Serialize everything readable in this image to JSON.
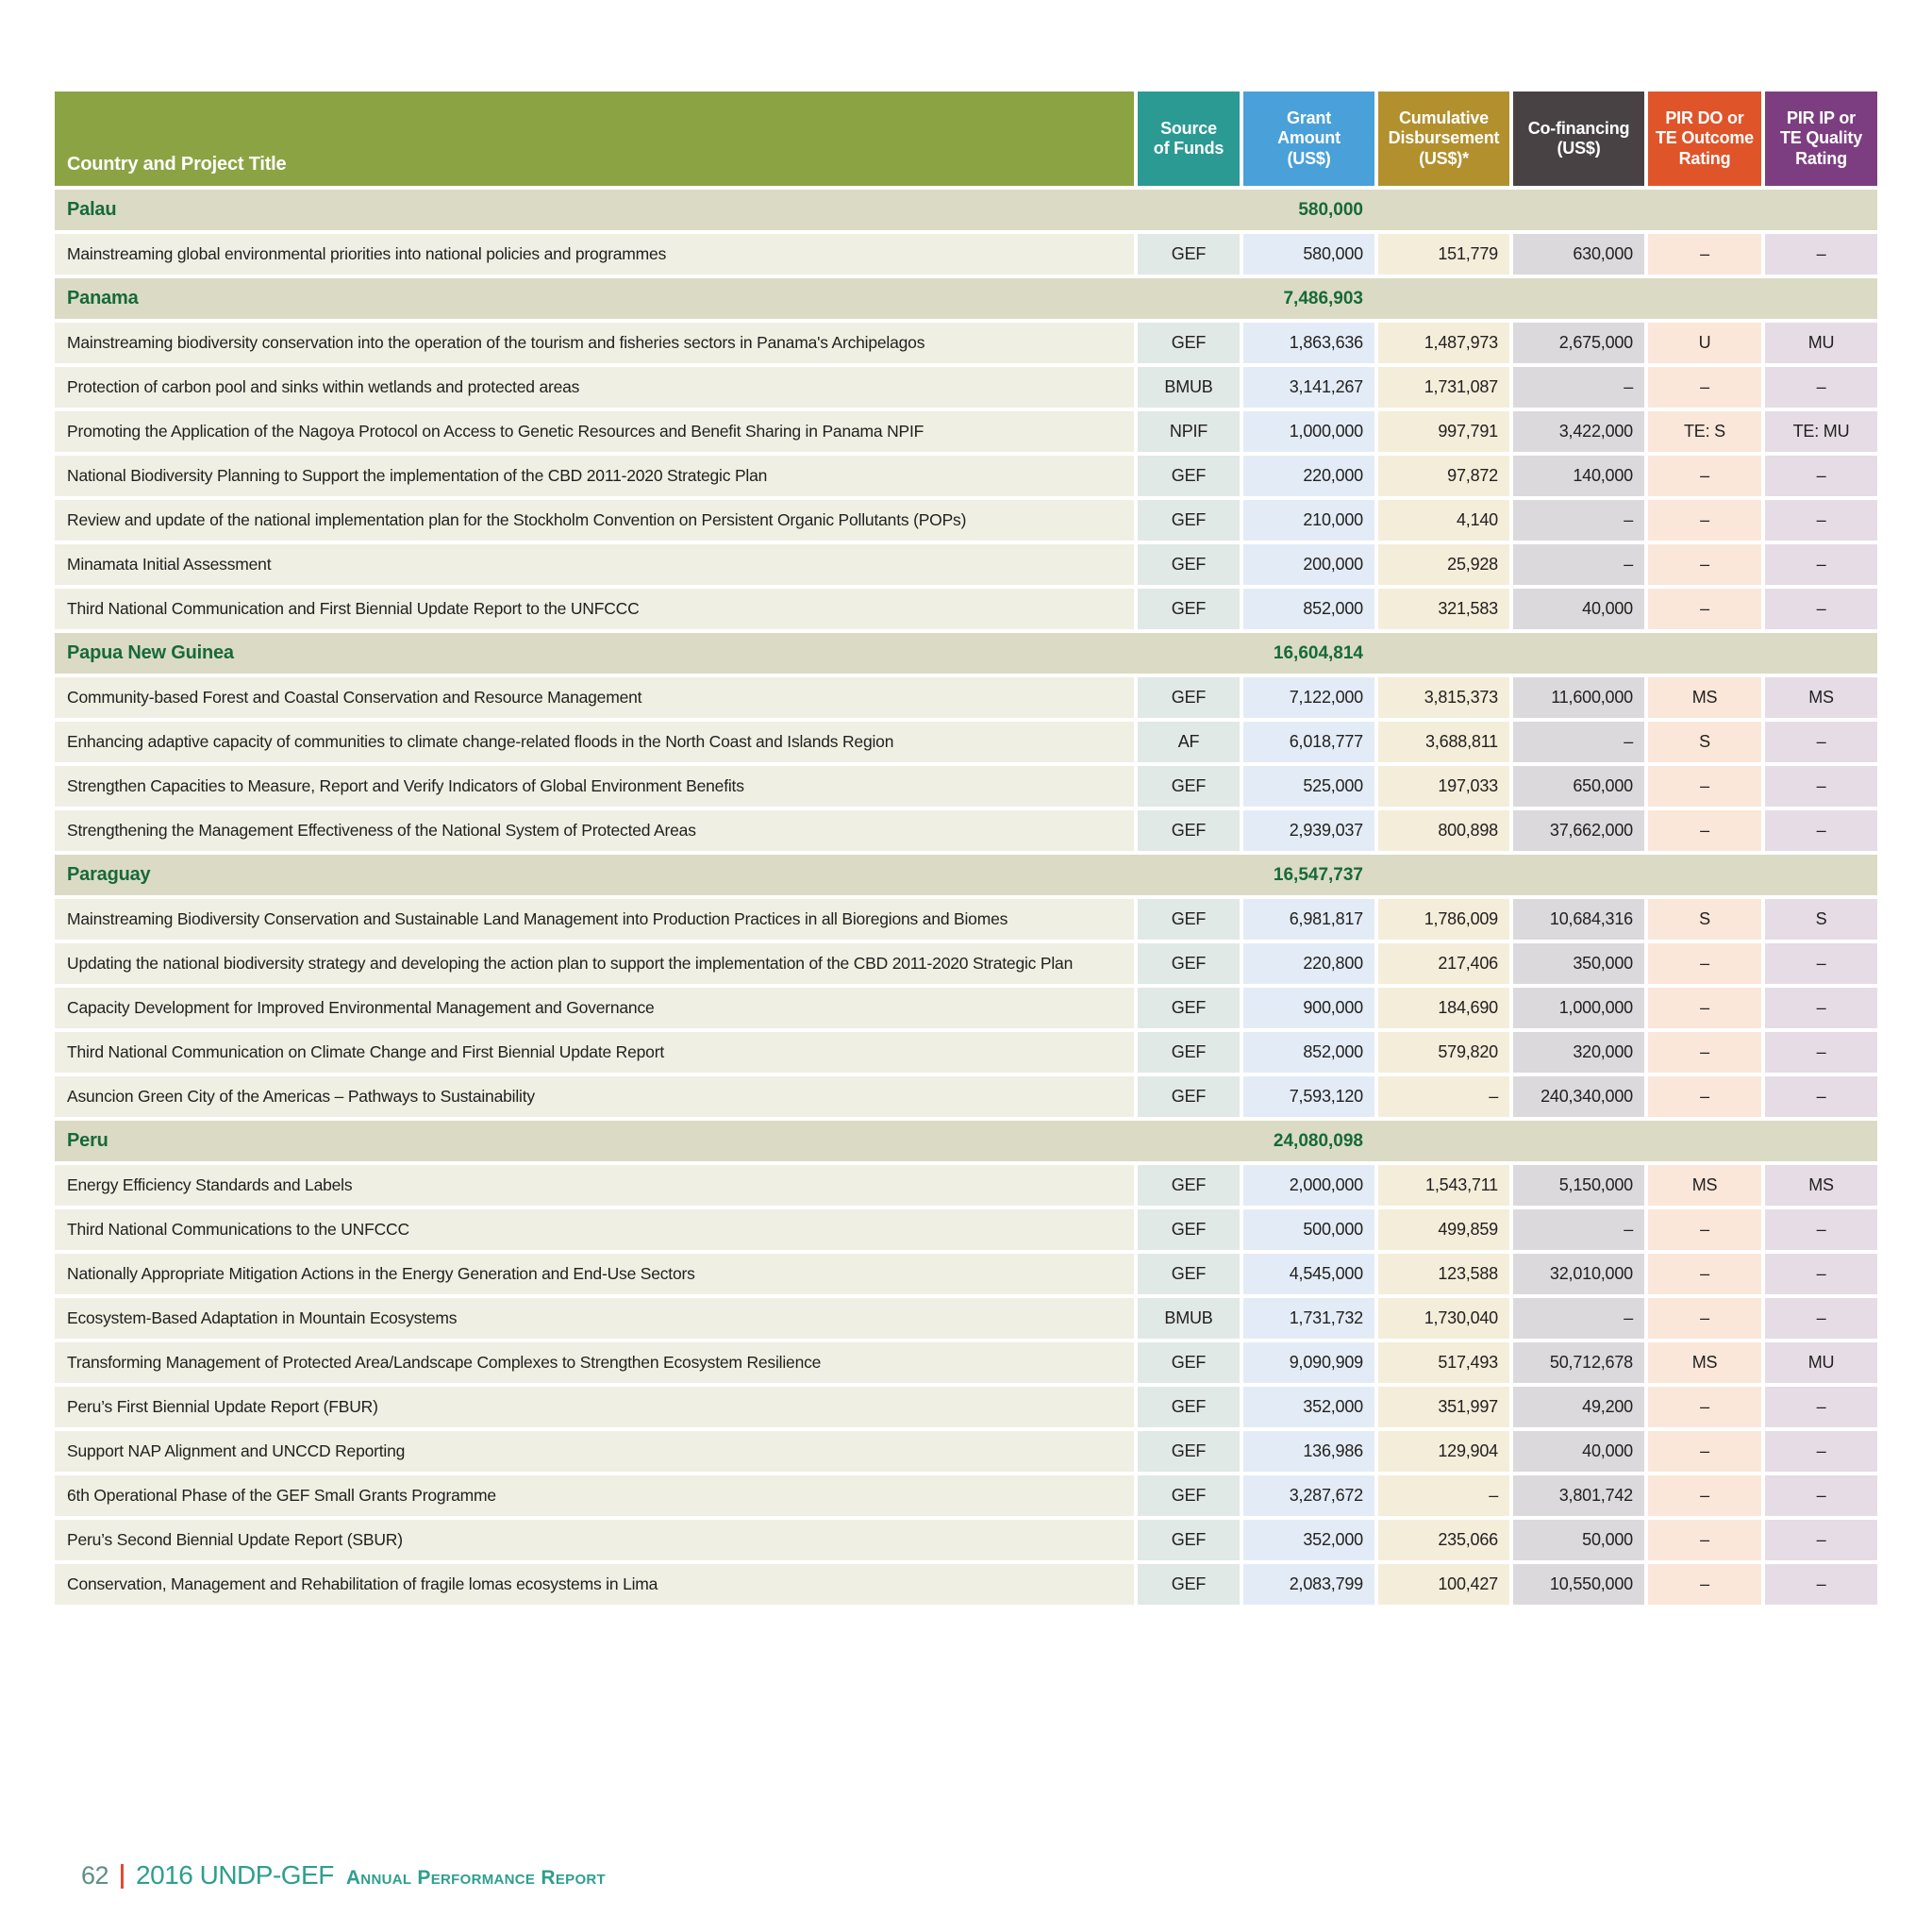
{
  "table": {
    "columns": [
      {
        "label": "Country and Project Title"
      },
      {
        "label": "Source\nof Funds"
      },
      {
        "label": "Grant\nAmount\n(US$)"
      },
      {
        "label": "Cumulative\nDisbursement\n(US$)*"
      },
      {
        "label": "Co-financing\n(US$)"
      },
      {
        "label": "PIR DO or\nTE Outcome\nRating"
      },
      {
        "label": "PIR IP or\nTE Quality\nRating"
      }
    ],
    "sections": [
      {
        "country": "Palau",
        "total": "580,000",
        "projects": [
          {
            "title": "Mainstreaming global environmental priorities into national policies and programmes",
            "source": "GEF",
            "grant": "580,000",
            "cumulative": "151,779",
            "cofinancing": "630,000",
            "pir_do": "–",
            "pir_ip": "–"
          }
        ]
      },
      {
        "country": "Panama",
        "total": "7,486,903",
        "projects": [
          {
            "title": "Mainstreaming biodiversity conservation into the operation of the tourism and fisheries sectors in Panama's Archipelagos",
            "source": "GEF",
            "grant": "1,863,636",
            "cumulative": "1,487,973",
            "cofinancing": "2,675,000",
            "pir_do": "U",
            "pir_ip": "MU"
          },
          {
            "title": "Protection of carbon pool and sinks within wetlands and protected areas",
            "source": "BMUB",
            "grant": "3,141,267",
            "cumulative": "1,731,087",
            "cofinancing": "–",
            "pir_do": "–",
            "pir_ip": "–"
          },
          {
            "title": "Promoting the Application of the Nagoya Protocol on Access to Genetic Resources and Benefit Sharing in Panama NPIF",
            "source": "NPIF",
            "grant": "1,000,000",
            "cumulative": "997,791",
            "cofinancing": "3,422,000",
            "pir_do": "TE: S",
            "pir_ip": "TE: MU"
          },
          {
            "title": "National Biodiversity Planning to Support the implementation of the CBD 2011-2020 Strategic Plan",
            "source": "GEF",
            "grant": "220,000",
            "cumulative": "97,872",
            "cofinancing": "140,000",
            "pir_do": "–",
            "pir_ip": "–"
          },
          {
            "title": "Review and update of the national implementation plan for the Stockholm Convention on Persistent Organic Pollutants (POPs)",
            "source": "GEF",
            "grant": "210,000",
            "cumulative": "4,140",
            "cofinancing": "–",
            "pir_do": "–",
            "pir_ip": "–"
          },
          {
            "title": "Minamata Initial Assessment",
            "source": "GEF",
            "grant": "200,000",
            "cumulative": "25,928",
            "cofinancing": "–",
            "pir_do": "–",
            "pir_ip": "–"
          },
          {
            "title": "Third National Communication and First Biennial Update Report to the UNFCCC",
            "source": "GEF",
            "grant": "852,000",
            "cumulative": "321,583",
            "cofinancing": "40,000",
            "pir_do": "–",
            "pir_ip": "–"
          }
        ]
      },
      {
        "country": "Papua New Guinea",
        "total": "16,604,814",
        "projects": [
          {
            "title": "Community-based Forest and Coastal Conservation and Resource Management",
            "source": "GEF",
            "grant": "7,122,000",
            "cumulative": "3,815,373",
            "cofinancing": "11,600,000",
            "pir_do": "MS",
            "pir_ip": "MS"
          },
          {
            "title": "Enhancing adaptive capacity of communities to climate change-related floods in the North Coast and Islands Region",
            "source": "AF",
            "grant": "6,018,777",
            "cumulative": "3,688,811",
            "cofinancing": "–",
            "pir_do": "S",
            "pir_ip": "–"
          },
          {
            "title": "Strengthen Capacities to Measure, Report and Verify Indicators of Global Environment Benefits",
            "source": "GEF",
            "grant": "525,000",
            "cumulative": "197,033",
            "cofinancing": "650,000",
            "pir_do": "–",
            "pir_ip": "–"
          },
          {
            "title": "Strengthening the Management Effectiveness of the National System of Protected Areas",
            "source": "GEF",
            "grant": "2,939,037",
            "cumulative": "800,898",
            "cofinancing": "37,662,000",
            "pir_do": "–",
            "pir_ip": "–"
          }
        ]
      },
      {
        "country": "Paraguay",
        "total": "16,547,737",
        "projects": [
          {
            "title": "Mainstreaming Biodiversity Conservation and Sustainable Land Management into Production Practices in all Bioregions and Biomes",
            "source": "GEF",
            "grant": "6,981,817",
            "cumulative": "1,786,009",
            "cofinancing": "10,684,316",
            "pir_do": "S",
            "pir_ip": "S"
          },
          {
            "title": "Updating the national biodiversity strategy and developing the action plan to support the implementation of the CBD 2011-2020 Strategic Plan",
            "source": "GEF",
            "grant": "220,800",
            "cumulative": "217,406",
            "cofinancing": "350,000",
            "pir_do": "–",
            "pir_ip": "–"
          },
          {
            "title": "Capacity Development for Improved Environmental Management and Governance",
            "source": "GEF",
            "grant": "900,000",
            "cumulative": "184,690",
            "cofinancing": "1,000,000",
            "pir_do": "–",
            "pir_ip": "–"
          },
          {
            "title": "Third National Communication on Climate Change and First Biennial Update Report",
            "source": "GEF",
            "grant": "852,000",
            "cumulative": "579,820",
            "cofinancing": "320,000",
            "pir_do": "–",
            "pir_ip": "–"
          },
          {
            "title": "Asuncion Green City of the Americas – Pathways to Sustainability",
            "source": "GEF",
            "grant": "7,593,120",
            "cumulative": "–",
            "cofinancing": "240,340,000",
            "pir_do": "–",
            "pir_ip": "–"
          }
        ]
      },
      {
        "country": "Peru",
        "total": "24,080,098",
        "projects": [
          {
            "title": "Energy Efficiency Standards and Labels",
            "source": "GEF",
            "grant": "2,000,000",
            "cumulative": "1,543,711",
            "cofinancing": "5,150,000",
            "pir_do": "MS",
            "pir_ip": "MS"
          },
          {
            "title": "Third National Communications to the UNFCCC",
            "source": "GEF",
            "grant": "500,000",
            "cumulative": "499,859",
            "cofinancing": "–",
            "pir_do": "–",
            "pir_ip": "–"
          },
          {
            "title": "Nationally Appropriate Mitigation Actions in the Energy Generation and End-Use Sectors",
            "source": "GEF",
            "grant": "4,545,000",
            "cumulative": "123,588",
            "cofinancing": "32,010,000",
            "pir_do": "–",
            "pir_ip": "–"
          },
          {
            "title": "Ecosystem-Based Adaptation in Mountain Ecosystems",
            "source": "BMUB",
            "grant": "1,731,732",
            "cumulative": "1,730,040",
            "cofinancing": "–",
            "pir_do": "–",
            "pir_ip": "–"
          },
          {
            "title": "Transforming Management of Protected Area/Landscape Complexes to Strengthen Ecosystem Resilience",
            "source": "GEF",
            "grant": "9,090,909",
            "cumulative": "517,493",
            "cofinancing": "50,712,678",
            "pir_do": "MS",
            "pir_ip": "MU"
          },
          {
            "title": "Peru’s First Biennial Update Report (FBUR)",
            "source": "GEF",
            "grant": "352,000",
            "cumulative": "351,997",
            "cofinancing": "49,200",
            "pir_do": "–",
            "pir_ip": "–"
          },
          {
            "title": "Support NAP Alignment and UNCCD Reporting",
            "source": "GEF",
            "grant": "136,986",
            "cumulative": "129,904",
            "cofinancing": "40,000",
            "pir_do": "–",
            "pir_ip": "–"
          },
          {
            "title": "6th Operational Phase of the GEF Small Grants Programme",
            "source": "GEF",
            "grant": "3,287,672",
            "cumulative": "–",
            "cofinancing": "3,801,742",
            "pir_do": "–",
            "pir_ip": "–"
          },
          {
            "title": "Peru’s Second Biennial Update Report (SBUR)",
            "source": "GEF",
            "grant": "352,000",
            "cumulative": "235,066",
            "cofinancing": "50,000",
            "pir_do": "–",
            "pir_ip": "–"
          },
          {
            "title": "Conservation, Management and Rehabilitation of fragile lomas ecosystems in Lima",
            "source": "GEF",
            "grant": "2,083,799",
            "cumulative": "100,427",
            "cofinancing": "10,550,000",
            "pir_do": "–",
            "pir_ip": "–"
          }
        ]
      }
    ]
  },
  "footer": {
    "page_number": "62",
    "report_title": "2016 UNDP-GEF",
    "report_subtitle": "Annual Performance Report"
  },
  "colors": {
    "header_title_bg": "#8ca344",
    "header_source_bg": "#2b9a93",
    "header_grant_bg": "#4aa0d8",
    "header_cumulative_bg": "#b2902e",
    "header_cofinancing_bg": "#494245",
    "header_pir_do_bg": "#e0542a",
    "header_pir_ip_bg": "#7d3e81",
    "country_row_bg": "#dbdbc5",
    "project_title_bg": "#f0efe3",
    "source_cell_bg": "#e0e9e6",
    "grant_cell_bg": "#e3ecf6",
    "cumulative_cell_bg": "#f4edda",
    "cofinancing_cell_bg": "#dcd9dc",
    "pir_do_cell_bg": "#fae7d9",
    "pir_ip_cell_bg": "#e5dce6",
    "country_text": "#17693a",
    "body_text": "#232020",
    "footer_teal": "#2f9e8e",
    "footer_page": "#5f8e84",
    "footer_bar": "#e8492e"
  }
}
